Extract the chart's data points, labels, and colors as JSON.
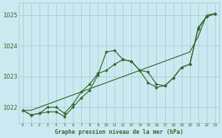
{
  "title": "Graphe pression niveau de la mer (hPa)",
  "bg_color": "#cce8f0",
  "grid_color": "#99cccc",
  "line_color": "#2d6a2d",
  "marker_color": "#2d6a2d",
  "x_labels": [
    "0",
    "1",
    "2",
    "3",
    "4",
    "5",
    "6",
    "7",
    "8",
    "9",
    "10",
    "11",
    "12",
    "13",
    "14",
    "15",
    "16",
    "17",
    "18",
    "19",
    "20",
    "21",
    "22",
    "23"
  ],
  "ylim": [
    1021.5,
    1025.4
  ],
  "yticks": [
    1022,
    1023,
    1024,
    1025
  ],
  "series_wavy": [
    1021.9,
    1021.75,
    1021.8,
    1021.85,
    1021.85,
    1021.7,
    1022.0,
    1022.3,
    1022.55,
    1023.05,
    1023.8,
    1023.85,
    1023.55,
    1023.5,
    1023.2,
    1022.8,
    1022.65,
    1022.7,
    1022.95,
    1023.3,
    1023.4,
    1024.55,
    1024.95,
    1025.05
  ],
  "series_smooth": [
    1021.9,
    1021.75,
    1021.8,
    1022.0,
    1022.0,
    1021.8,
    1022.1,
    1022.5,
    1022.75,
    1023.1,
    1023.2,
    1023.4,
    1023.55,
    1023.5,
    1023.2,
    1023.15,
    1022.75,
    1022.7,
    1022.95,
    1023.3,
    1023.4,
    1024.6,
    1024.95,
    1025.05
  ],
  "series_straight": [
    1021.9,
    1021.9,
    1022.0,
    1022.1,
    1022.2,
    1022.3,
    1022.4,
    1022.5,
    1022.6,
    1022.7,
    1022.8,
    1022.9,
    1023.0,
    1023.1,
    1023.2,
    1023.3,
    1023.4,
    1023.5,
    1023.6,
    1023.7,
    1023.8,
    1024.3,
    1025.0,
    1025.05
  ]
}
